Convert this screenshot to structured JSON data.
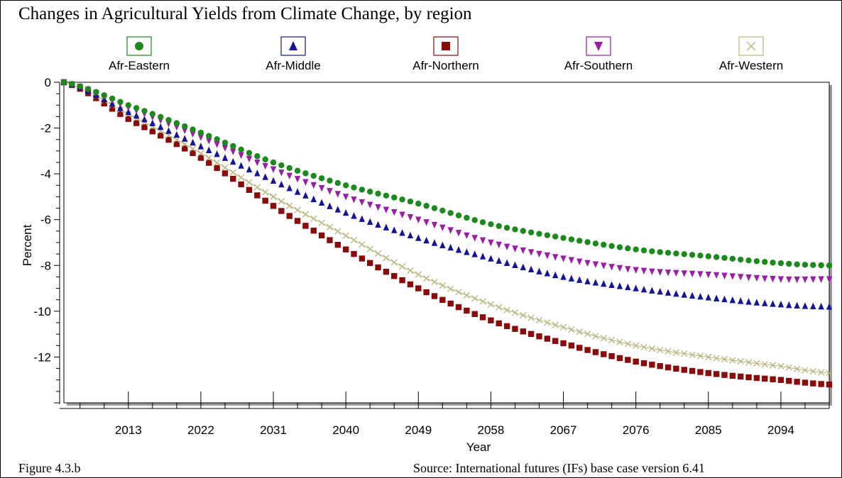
{
  "caption": {
    "title": "Changes in Agricultural Yields from Climate Change, by region",
    "figure_label": "Figure 4.3.b",
    "source": "Source: International futures (IFs) base case version 6.41"
  },
  "chart_data": {
    "type": "scatter",
    "xlabel": "Year",
    "ylabel": "Percent",
    "xlim": [
      2005,
      2100
    ],
    "ylim": [
      -14,
      0
    ],
    "x_ticks": [
      2013,
      2022,
      2031,
      2040,
      2049,
      2058,
      2067,
      2076,
      2085,
      2094
    ],
    "y_ticks": [
      0,
      -2,
      -4,
      -6,
      -8,
      -10,
      -12
    ],
    "legend_position": "top",
    "grid": false,
    "x": [
      2005,
      2013,
      2022,
      2031,
      2040,
      2049,
      2058,
      2067,
      2076,
      2085,
      2094,
      2100
    ],
    "series": [
      {
        "name": "Afr-Eastern",
        "color": "#1a8a1a",
        "marker": "circle",
        "values": [
          0,
          -1.0,
          -2.2,
          -3.5,
          -4.5,
          -5.3,
          -6.2,
          -6.8,
          -7.3,
          -7.6,
          -7.9,
          -8.0
        ]
      },
      {
        "name": "Afr-Middle",
        "color": "#14149a",
        "marker": "triangle-up",
        "values": [
          0,
          -1.3,
          -2.8,
          -4.3,
          -5.7,
          -6.8,
          -7.7,
          -8.5,
          -9.0,
          -9.4,
          -9.7,
          -9.8
        ]
      },
      {
        "name": "Afr-Northern",
        "color": "#8b0a0a",
        "marker": "square",
        "values": [
          0,
          -1.6,
          -3.3,
          -5.4,
          -7.3,
          -9.0,
          -10.4,
          -11.4,
          -12.2,
          -12.7,
          -13.0,
          -13.2
        ]
      },
      {
        "name": "Afr-Southern",
        "color": "#9a1ca8",
        "marker": "triangle-down",
        "values": [
          0,
          -1.1,
          -2.4,
          -3.8,
          -5.0,
          -6.0,
          -7.0,
          -7.7,
          -8.2,
          -8.4,
          -8.6,
          -8.6
        ]
      },
      {
        "name": "Afr-Western",
        "color": "#b8b47a",
        "marker": "x",
        "values": [
          0,
          -1.4,
          -3.1,
          -5.0,
          -6.7,
          -8.4,
          -9.7,
          -10.7,
          -11.5,
          -12.0,
          -12.4,
          -12.7
        ]
      }
    ]
  }
}
